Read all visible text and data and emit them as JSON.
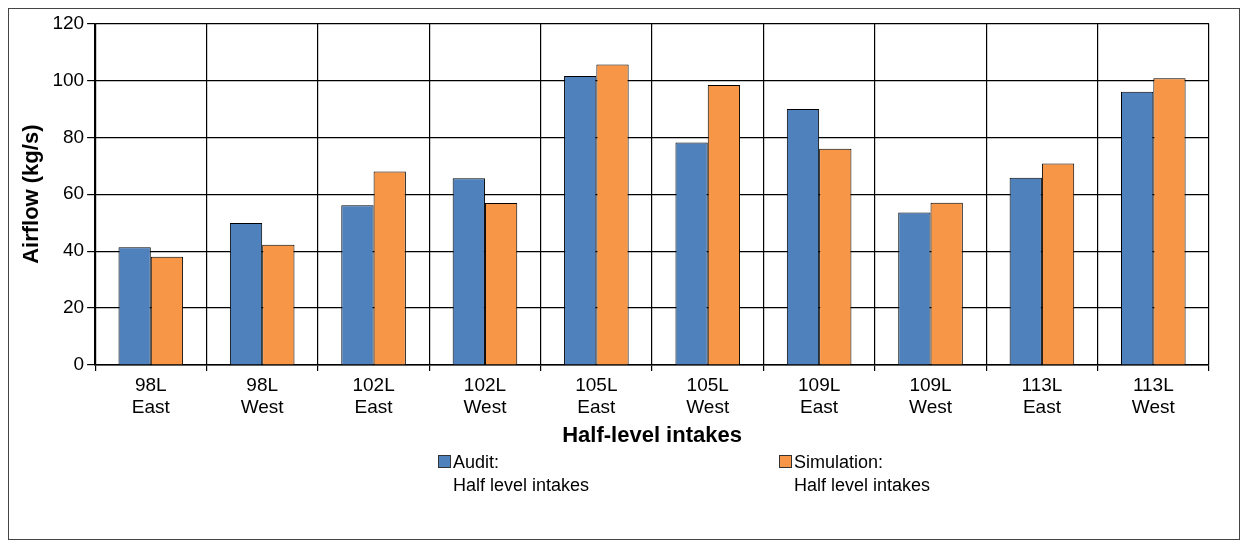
{
  "chart_data": {
    "type": "bar",
    "xlabel": "Half-level intakes",
    "ylabel": "Airflow (kg/s)",
    "categories": [
      "98L\nEast",
      "98L\nWest",
      "102L\nEast",
      "102L\nWest",
      "105L\nEast",
      "105L\nWest",
      "109L\nEast",
      "109L\nWest",
      "113L\nEast",
      "113L\nWest"
    ],
    "series": [
      {
        "name": "Audit:\nHalf level intakes",
        "color": "#4f81bd",
        "values": [
          41.4,
          49.9,
          56.1,
          65.6,
          101.5,
          78.2,
          89.9,
          53.6,
          65.8,
          96.0
        ]
      },
      {
        "name": "Simulation:\nHalf level intakes",
        "color": "#f79646",
        "values": [
          38.0,
          42.2,
          68.0,
          56.9,
          105.6,
          98.4,
          76.0,
          57.0,
          70.8,
          100.7
        ]
      }
    ],
    "ylim": [
      0,
      120
    ],
    "yticks": [
      0,
      20,
      40,
      60,
      80,
      100,
      120
    ],
    "grid": true,
    "legend": "bottom"
  }
}
